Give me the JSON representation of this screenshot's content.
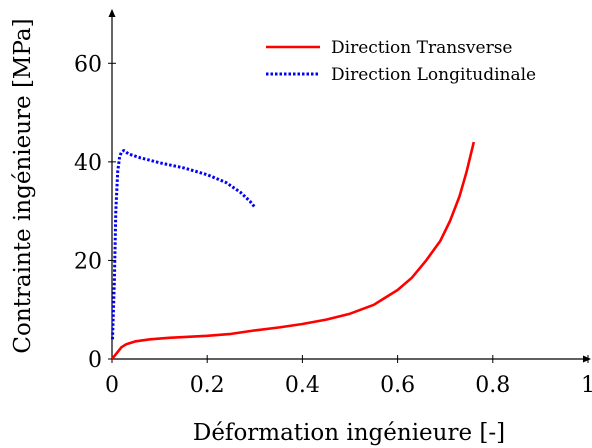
{
  "chart_data": {
    "type": "line",
    "title": "",
    "xlabel": "Déformation ingénieure [-]",
    "ylabel": "Contrainte ingénieure [MPa]",
    "xlim": [
      0,
      1
    ],
    "ylim": [
      0,
      70
    ],
    "x_ticks": [
      0,
      0.2,
      0.4,
      0.6,
      0.8,
      1
    ],
    "x_tick_labels": [
      "0",
      "0.2",
      "0.4",
      "0.6",
      "0.8",
      "1"
    ],
    "y_ticks": [
      0,
      20,
      40,
      60
    ],
    "y_tick_labels": [
      "0",
      "20",
      "40",
      "60"
    ],
    "grid": false,
    "legend_position": "top-right",
    "series": [
      {
        "name": "Direction Transverse",
        "color": "#ff0000",
        "style": "solid",
        "x": [
          0,
          0.01,
          0.02,
          0.03,
          0.05,
          0.08,
          0.12,
          0.16,
          0.2,
          0.25,
          0.3,
          0.35,
          0.4,
          0.45,
          0.5,
          0.55,
          0.6,
          0.63,
          0.66,
          0.69,
          0.71,
          0.73,
          0.745,
          0.76
        ],
        "y": [
          0,
          1.2,
          2.4,
          3.0,
          3.6,
          4.0,
          4.3,
          4.5,
          4.7,
          5.1,
          5.8,
          6.4,
          7.1,
          8.0,
          9.2,
          11.0,
          14.0,
          16.5,
          20.0,
          24.0,
          28.0,
          33.0,
          38.0,
          44.0
        ]
      },
      {
        "name": "Direction Longitudinale",
        "color": "#0000ff",
        "style": "dotted",
        "x": [
          0.001,
          0.005,
          0.008,
          0.012,
          0.016,
          0.02,
          0.025,
          0.035,
          0.06,
          0.1,
          0.15,
          0.2,
          0.24,
          0.27,
          0.29,
          0.3
        ],
        "y": [
          4,
          16,
          30,
          38,
          41,
          42,
          42.3,
          41.6,
          40.8,
          39.8,
          38.8,
          37.4,
          35.8,
          33.8,
          32.0,
          30.8
        ]
      }
    ]
  }
}
